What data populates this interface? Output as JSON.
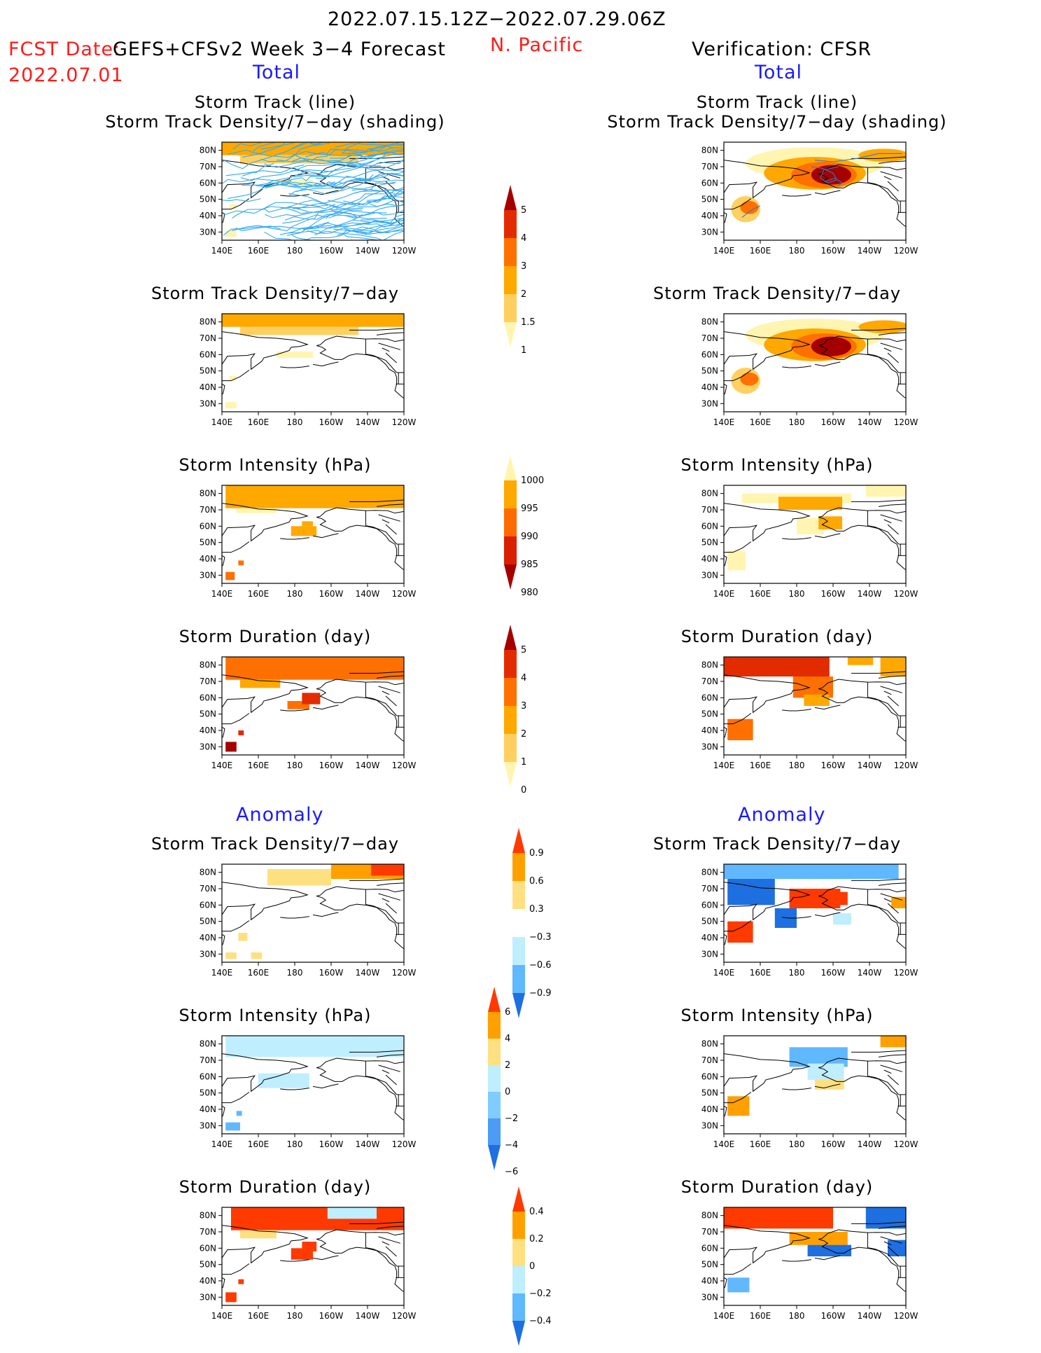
{
  "header": {
    "date_range": "2022.07.15.12Z−2022.07.29.06Z",
    "fcst_date_label": "FCST Date:",
    "fcst_model": "GEFS+CFSv2 Week 3−4 Forecast",
    "fcst_date": "2022.07.01",
    "region": "N. Pacific",
    "verification": "Verification: CFSR"
  },
  "sections": {
    "total_left": "Total",
    "total_right": "Total",
    "anomaly_left": "Anomaly",
    "anomaly_right": "Anomaly"
  },
  "panel_titles": {
    "track_line": "Storm Track (line)",
    "track_shading": "Storm Track Density/7−day (shading)",
    "density": "Storm Track Density/7−day",
    "intensity": "Storm Intensity (hPa)",
    "duration": "Storm Duration (day)"
  },
  "axes": {
    "lat_ticks": [
      "80N",
      "70N",
      "60N",
      "50N",
      "40N",
      "30N"
    ],
    "lon_ticks": [
      "140E",
      "160E",
      "180",
      "160W",
      "140W",
      "120W"
    ]
  },
  "colorbars": {
    "density_total": {
      "labels": [
        "5",
        "4",
        "3",
        "2",
        "1.5",
        "1"
      ],
      "colors": [
        "#a50000",
        "#e32b00",
        "#ff7000",
        "#ffa800",
        "#ffd060",
        "#fff5b0"
      ]
    },
    "intensity_total": {
      "labels": [
        "1000",
        "995",
        "990",
        "985",
        "980"
      ],
      "colors": [
        "#fff5b0",
        "#ffa800",
        "#ff6a00",
        "#d92000",
        "#a50000"
      ]
    },
    "duration_total": {
      "labels": [
        "5",
        "4",
        "3",
        "2",
        "1",
        "0"
      ],
      "colors": [
        "#a50000",
        "#e32b00",
        "#ff7000",
        "#ffa800",
        "#ffd060",
        "#fff5b0"
      ]
    },
    "density_anom": {
      "labels": [
        "0.9",
        "0.6",
        "0.3",
        "−0.3",
        "−0.6",
        "−0.9"
      ],
      "colors": [
        "#ff3a00",
        "#ffa000",
        "#ffe080",
        "#ffffff",
        "#bfeeff",
        "#60b8ff",
        "#1e6fe0"
      ]
    },
    "intensity_anom": {
      "labels": [
        "6",
        "4",
        "2",
        "0",
        "−2",
        "−4",
        "−6"
      ],
      "colors": [
        "#ff3a00",
        "#ffa000",
        "#ffe080",
        "#bfeeff",
        "#80ccff",
        "#4a9cf5",
        "#1e6fe0"
      ]
    },
    "duration_anom": {
      "labels": [
        "0.4",
        "0.2",
        "0",
        "−0.2",
        "−0.4"
      ],
      "colors": [
        "#ff3a00",
        "#ffa000",
        "#ffe080",
        "#bfeeff",
        "#60b8ff",
        "#1e6fe0"
      ]
    }
  },
  "colors": {
    "track_forecast": "#33aaee",
    "track_verification": "#3377cc",
    "coast": "#000000"
  }
}
